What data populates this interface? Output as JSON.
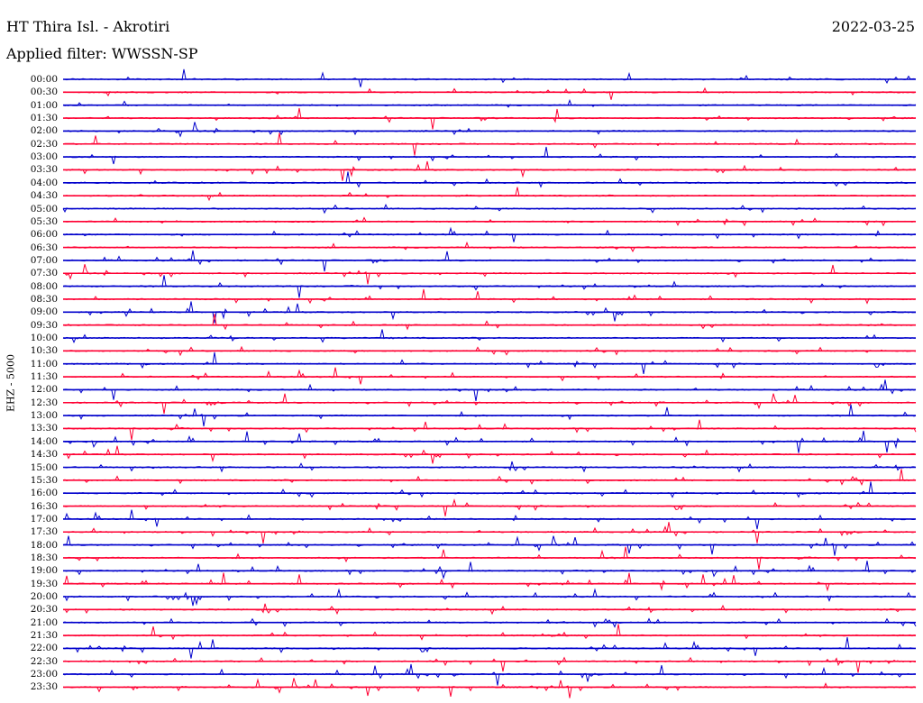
{
  "header": {
    "station": "HT Thira Isl. - Akrotiri",
    "date": "2022-03-25",
    "filter": "Applied filter: WWSSN-SP"
  },
  "chart_data": {
    "type": "line",
    "ylabel": "EHZ - 5000",
    "colors": {
      "odd_rows": "#0000cc",
      "even_rows": "#ff0033"
    },
    "rows": [
      {
        "label": "00:00"
      },
      {
        "label": "00:30"
      },
      {
        "label": "01:00"
      },
      {
        "label": "01:30"
      },
      {
        "label": "02:00"
      },
      {
        "label": "02:30"
      },
      {
        "label": "03:00"
      },
      {
        "label": "03:30"
      },
      {
        "label": "04:00"
      },
      {
        "label": "04:30"
      },
      {
        "label": "05:00"
      },
      {
        "label": "05:30"
      },
      {
        "label": "06:00"
      },
      {
        "label": "06:30"
      },
      {
        "label": "07:00"
      },
      {
        "label": "07:30"
      },
      {
        "label": "08:00"
      },
      {
        "label": "08:30"
      },
      {
        "label": "09:00"
      },
      {
        "label": "09:30"
      },
      {
        "label": "10:00"
      },
      {
        "label": "10:30"
      },
      {
        "label": "11:00"
      },
      {
        "label": "11:30"
      },
      {
        "label": "12:00"
      },
      {
        "label": "12:30"
      },
      {
        "label": "13:00"
      },
      {
        "label": "13:30"
      },
      {
        "label": "14:00"
      },
      {
        "label": "14:30"
      },
      {
        "label": "15:00"
      },
      {
        "label": "15:30"
      },
      {
        "label": "16:00"
      },
      {
        "label": "16:30"
      },
      {
        "label": "17:00"
      },
      {
        "label": "17:30"
      },
      {
        "label": "18:00"
      },
      {
        "label": "18:30"
      },
      {
        "label": "19:00"
      },
      {
        "label": "19:30"
      },
      {
        "label": "20:00"
      },
      {
        "label": "20:30"
      },
      {
        "label": "21:00"
      },
      {
        "label": "21:30"
      },
      {
        "label": "22:00"
      },
      {
        "label": "22:30"
      },
      {
        "label": "23:00"
      },
      {
        "label": "23:30"
      }
    ]
  }
}
